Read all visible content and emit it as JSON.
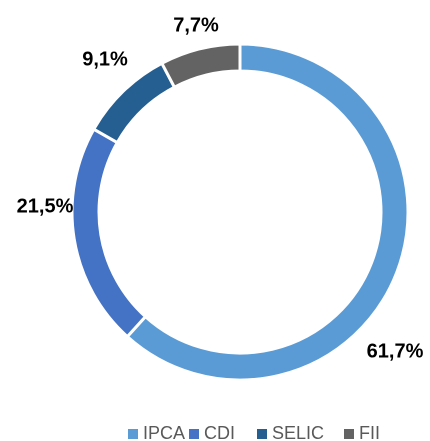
{
  "chart_data": {
    "type": "donut",
    "categories": [
      "IPCA",
      "CDI",
      "SELIC",
      "FII"
    ],
    "values": [
      61.7,
      21.5,
      9.1,
      7.7
    ],
    "value_labels": [
      "61,7%",
      "21,5%",
      "9,1%",
      "7,7%"
    ],
    "colors": [
      "#5b9bd5",
      "#4472c4",
      "#255e91",
      "#636363"
    ],
    "legend": "bottom"
  }
}
